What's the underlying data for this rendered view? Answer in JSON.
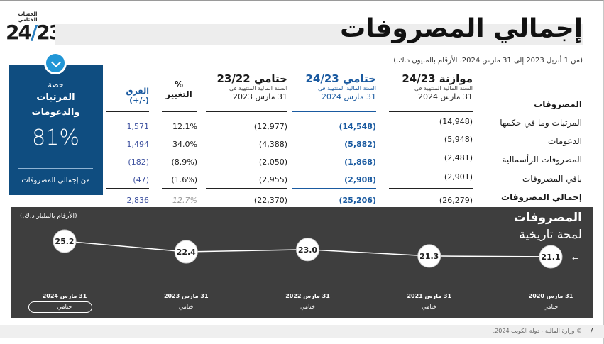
{
  "logo": {
    "label": "الحساب الختامي",
    "number_left": "24",
    "number_right": "23"
  },
  "title": "إجمالي المصروفات",
  "subtitle": "(من 1 أبريل 2023 إلى 31 مارس 2024، الأرقام بالمليون د.ك.)",
  "card": {
    "line1": "حصة",
    "line2": "المرتبات",
    "line3": "والدعومات",
    "percent": "81%",
    "footer": "من إجمالي المصروفات"
  },
  "table": {
    "section_label": "المصروفات",
    "columns": [
      {
        "title": "موازنة 24/23",
        "sub": "السنة المالية المنتهية في",
        "date": "31 مارس 2024",
        "style": "normal"
      },
      {
        "title": "ختامي 24/23",
        "sub": "السنة المالية المنتهية في",
        "date": "31 مارس 2024",
        "style": "blue"
      },
      {
        "title": "ختامي 23/22",
        "sub": "السنة المالية المنتهية في",
        "date": "31 مارس 2023",
        "style": "normal"
      },
      {
        "title": "%",
        "sub": "",
        "date": "التغيير",
        "style": "pct"
      },
      {
        "title": "الفرق (+/-)",
        "sub": "",
        "date": "",
        "style": "diff"
      }
    ],
    "rows": [
      {
        "label": "المرتبات وما في حكمها",
        "budget": "(14,948)",
        "actual": "(14,548)",
        "prior": "(12,977)",
        "pct": "12.1%",
        "diff": "1,571"
      },
      {
        "label": "الدعومات",
        "budget": "(5,948)",
        "actual": "(5,882)",
        "prior": "(4,388)",
        "pct": "34.0%",
        "diff": "1,494"
      },
      {
        "label": "المصروفات الرأسمالية",
        "budget": "(2,481)",
        "actual": "(1,868)",
        "prior": "(2,050)",
        "pct": "(8.9%)",
        "diff": "(182)"
      },
      {
        "label": "باقي المصروفات",
        "budget": "(2,901)",
        "actual": "(2,908)",
        "prior": "(2,955)",
        "pct": "(1.6%)",
        "diff": "(47)"
      }
    ],
    "total": {
      "label": "إجمالي المصروفات",
      "budget": "(26,279)",
      "actual": "(25,206)",
      "prior": "(22,370)",
      "pct": "12.7%",
      "diff": "2,836"
    }
  },
  "panel": {
    "title": "المصروفات",
    "subtitle": "لمحة تاريخية",
    "unit": "(الأرقام بالمليار د.ك.)",
    "arrow": "←"
  },
  "chart_data": {
    "type": "line",
    "title": "المصروفات",
    "subtitle": "لمحة تاريخية",
    "ylabel": "(الأرقام بالمليار د.ك.)",
    "categories": [
      "31 مارس 2024",
      "31 مارس 2023",
      "31 مارس 2022",
      "31 مارس 2021",
      "31 مارس 2020"
    ],
    "category_sub": [
      "ختامي",
      "ختامي",
      "ختامي",
      "ختامي",
      "ختامي"
    ],
    "values": [
      25.2,
      22.4,
      23.0,
      21.3,
      21.1
    ],
    "labels": [
      "25.2",
      "22.4",
      "23.0",
      "21.3",
      "21.1"
    ],
    "highlight_index": 0,
    "ylim": [
      20,
      26
    ],
    "grid": false,
    "colors": {
      "background": "#3e3e3e",
      "line": "#ffffff",
      "marker_fill": "#ffffff",
      "label": "#222222"
    }
  },
  "footer": {
    "text": "© وزارة المالية - دولة الكويت 2024.",
    "page": "7"
  }
}
